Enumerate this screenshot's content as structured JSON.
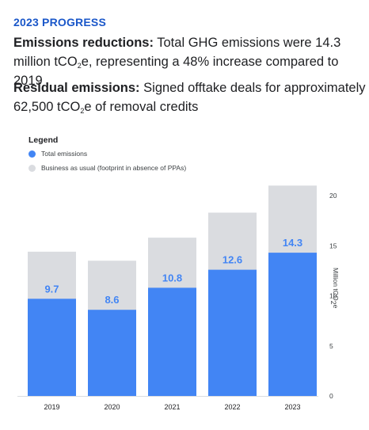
{
  "header": {
    "eyebrow": "2023 PROGRESS",
    "para1_bold": "Emissions reductions:",
    "para1_text_a": " Total GHG emissions were 14.3 million tCO",
    "para1_sub": "2",
    "para1_text_b": "e, representing a 48% increase compared to 2019",
    "para2_bold": "Residual emissions:",
    "para2_text_a": " Signed offtake deals for approximately 62,500 tCO",
    "para2_sub": "2",
    "para2_text_b": "e of removal credits"
  },
  "legend": {
    "title": "Legend",
    "items": [
      "Total emissions",
      "Business as usual (footprint in absence of PPAs)"
    ]
  },
  "colors": {
    "total": "#4285f4",
    "bau": "#dadce0",
    "label": "#ffffff",
    "label_on_bau": "#4285f4",
    "eyebrow": "#1a57c9"
  },
  "chart_data": {
    "type": "bar",
    "categories": [
      "2019",
      "2020",
      "2021",
      "2022",
      "2023"
    ],
    "series": [
      {
        "name": "Total emissions",
        "values": [
          9.7,
          8.6,
          10.8,
          12.6,
          14.3
        ]
      },
      {
        "name": "Business as usual (footprint in absence of PPAs)",
        "values": [
          14.4,
          13.5,
          15.8,
          18.3,
          21.0
        ]
      }
    ],
    "data_labels": [
      "9.7",
      "8.6",
      "10.8",
      "12.6",
      "14.3"
    ],
    "ylabel_main": "Million tCO",
    "ylabel_sub": "2",
    "ylabel_tail": "e",
    "ylim": [
      0,
      20
    ],
    "yticks": [
      0,
      5,
      10,
      15,
      20
    ],
    "y_axis_position": "right",
    "legend_position": "top-left",
    "grid": false
  }
}
